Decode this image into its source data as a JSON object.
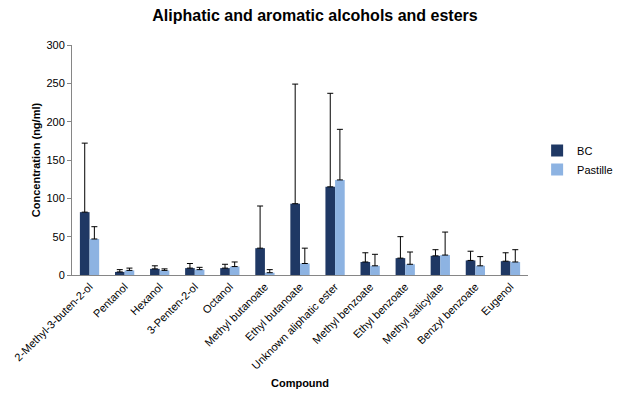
{
  "chart_data": {
    "type": "bar",
    "title": "Aliphatic and aromatic alcohols and esters",
    "x_label": "Compound",
    "y_label": "Concentration (ng/ml)",
    "categories": [
      "2-Methyl-3-buten-2-ol",
      "Pentanol",
      "Hexanol",
      "3-Penten-2-ol",
      "Octanol",
      "Methyl butanoate",
      "Ethyl butanoate",
      "Unknown aliphatic ester",
      "Methyl benzoate",
      "Ethyl benzoate",
      "Methyl salicylate",
      "Benzyl benzoate",
      "Eugenol"
    ],
    "series": [
      {
        "name": "BC",
        "color": "#1f3864",
        "values": [
          82,
          4,
          8,
          9,
          9,
          35,
          93,
          115,
          17,
          22,
          25,
          19,
          18
        ],
        "errors": [
          90,
          3,
          4,
          6,
          5,
          55,
          156,
          122,
          12,
          28,
          8,
          12,
          11
        ]
      },
      {
        "name": "Pastille",
        "color": "#8db3e2",
        "values": [
          47,
          6,
          6,
          7,
          11,
          3,
          15,
          124,
          12,
          14,
          26,
          12,
          17
        ],
        "errors": [
          16,
          3,
          2,
          3,
          6,
          4,
          20,
          66,
          15,
          16,
          30,
          12,
          16
        ]
      }
    ],
    "ylim": [
      0,
      300
    ],
    "yticks": [
      0,
      50,
      100,
      150,
      200,
      250,
      300
    ],
    "grid": false,
    "legend": "right"
  }
}
